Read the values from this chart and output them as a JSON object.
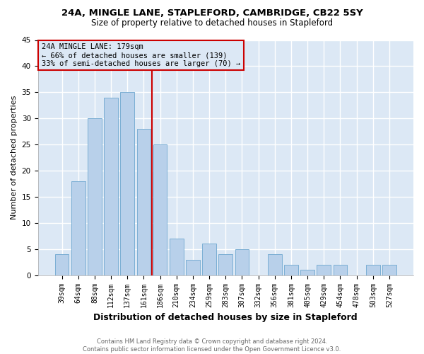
{
  "title": "24A, MINGLE LANE, STAPLEFORD, CAMBRIDGE, CB22 5SY",
  "subtitle": "Size of property relative to detached houses in Stapleford",
  "xlabel": "Distribution of detached houses by size in Stapleford",
  "ylabel": "Number of detached properties",
  "categories": [
    "39sqm",
    "64sqm",
    "88sqm",
    "112sqm",
    "137sqm",
    "161sqm",
    "186sqm",
    "210sqm",
    "234sqm",
    "259sqm",
    "283sqm",
    "307sqm",
    "332sqm",
    "356sqm",
    "381sqm",
    "405sqm",
    "429sqm",
    "454sqm",
    "478sqm",
    "503sqm",
    "527sqm"
  ],
  "values": [
    4,
    18,
    30,
    34,
    35,
    28,
    25,
    7,
    3,
    6,
    4,
    5,
    0,
    4,
    2,
    1,
    2,
    2,
    0,
    2,
    2
  ],
  "bar_color": "#b8d0ea",
  "bar_edge_color": "#7aaed4",
  "vline_x_index": 5.5,
  "vline_color": "#cc0000",
  "annotation_lines": [
    "24A MINGLE LANE: 179sqm",
    "← 66% of detached houses are smaller (139)",
    "33% of semi-detached houses are larger (70) →"
  ],
  "annotation_box_color": "#cc0000",
  "footer_line1": "Contains HM Land Registry data © Crown copyright and database right 2024.",
  "footer_line2": "Contains public sector information licensed under the Open Government Licence v3.0.",
  "ylim": [
    0,
    45
  ],
  "fig_bg_color": "#ffffff",
  "plot_bg_color": "#dce8f5",
  "grid_color": "#ffffff",
  "title_fontsize": 9.5,
  "subtitle_fontsize": 8.5,
  "ylabel_fontsize": 8,
  "xlabel_fontsize": 9,
  "tick_fontsize": 7,
  "ann_fontsize": 7.5,
  "footer_fontsize": 6
}
